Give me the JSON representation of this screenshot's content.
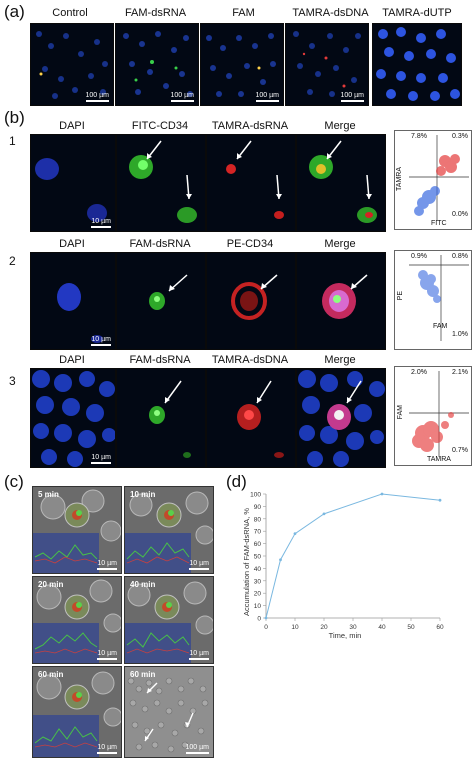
{
  "panel_a": {
    "letter": "(a)",
    "labels": [
      "Control",
      "FAM-dsRNA",
      "FAM",
      "TAMRA-dsDNA",
      "TAMRA-dUTP"
    ],
    "scale": "100 µm"
  },
  "panel_b": {
    "letter": "(b)",
    "rows": [
      {
        "num": "1",
        "labels": [
          "DAPI",
          "FITC-CD34",
          "TAMRA-dsRNA",
          "Merge"
        ],
        "flow": {
          "ylabel": "TAMRA",
          "xlabel": "FITC",
          "tl": "7.8%",
          "tr": "0.3%",
          "br": "0.0%"
        }
      },
      {
        "num": "2",
        "labels": [
          "DAPI",
          "FAM-dsRNA",
          "PE-CD34",
          "Merge"
        ],
        "flow": {
          "ylabel": "PE",
          "xlabel": "FAM",
          "tl": "0.9%",
          "tr": "0.8%",
          "br": "1.0%"
        }
      },
      {
        "num": "3",
        "labels": [
          "DAPI",
          "FAM-dsRNA",
          "TAMRA-dsDNA",
          "Merge"
        ],
        "flow": {
          "ylabel": "FAM",
          "xlabel": "TAMRA",
          "tl": "2.0%",
          "tr": "2.1%",
          "br": "0.7%"
        }
      }
    ],
    "scale": "10 µm"
  },
  "panel_c": {
    "letter": "(c)",
    "times": [
      "5 min",
      "10 min",
      "20 min",
      "40 min",
      "60 min",
      "60 min"
    ],
    "scale_small": "10 µm",
    "scale_large": "100 µm"
  },
  "panel_d": {
    "letter": "(d)"
  },
  "chart_data": {
    "type": "line",
    "x": [
      0,
      5,
      10,
      20,
      40,
      60
    ],
    "series": [
      {
        "values": [
          0,
          47,
          68,
          84,
          100,
          95
        ]
      }
    ],
    "xlabel": "Time, min",
    "ylabel": "Accumulation of FAM-dsRNA, %",
    "xlim": [
      0,
      60
    ],
    "ylim": [
      0,
      100
    ],
    "xticks": [
      0,
      10,
      20,
      30,
      40,
      50,
      60
    ],
    "yticks": [
      0,
      10,
      20,
      30,
      40,
      50,
      60,
      70,
      80,
      90,
      100
    ],
    "color": "#7ab8e0",
    "grid": false
  }
}
